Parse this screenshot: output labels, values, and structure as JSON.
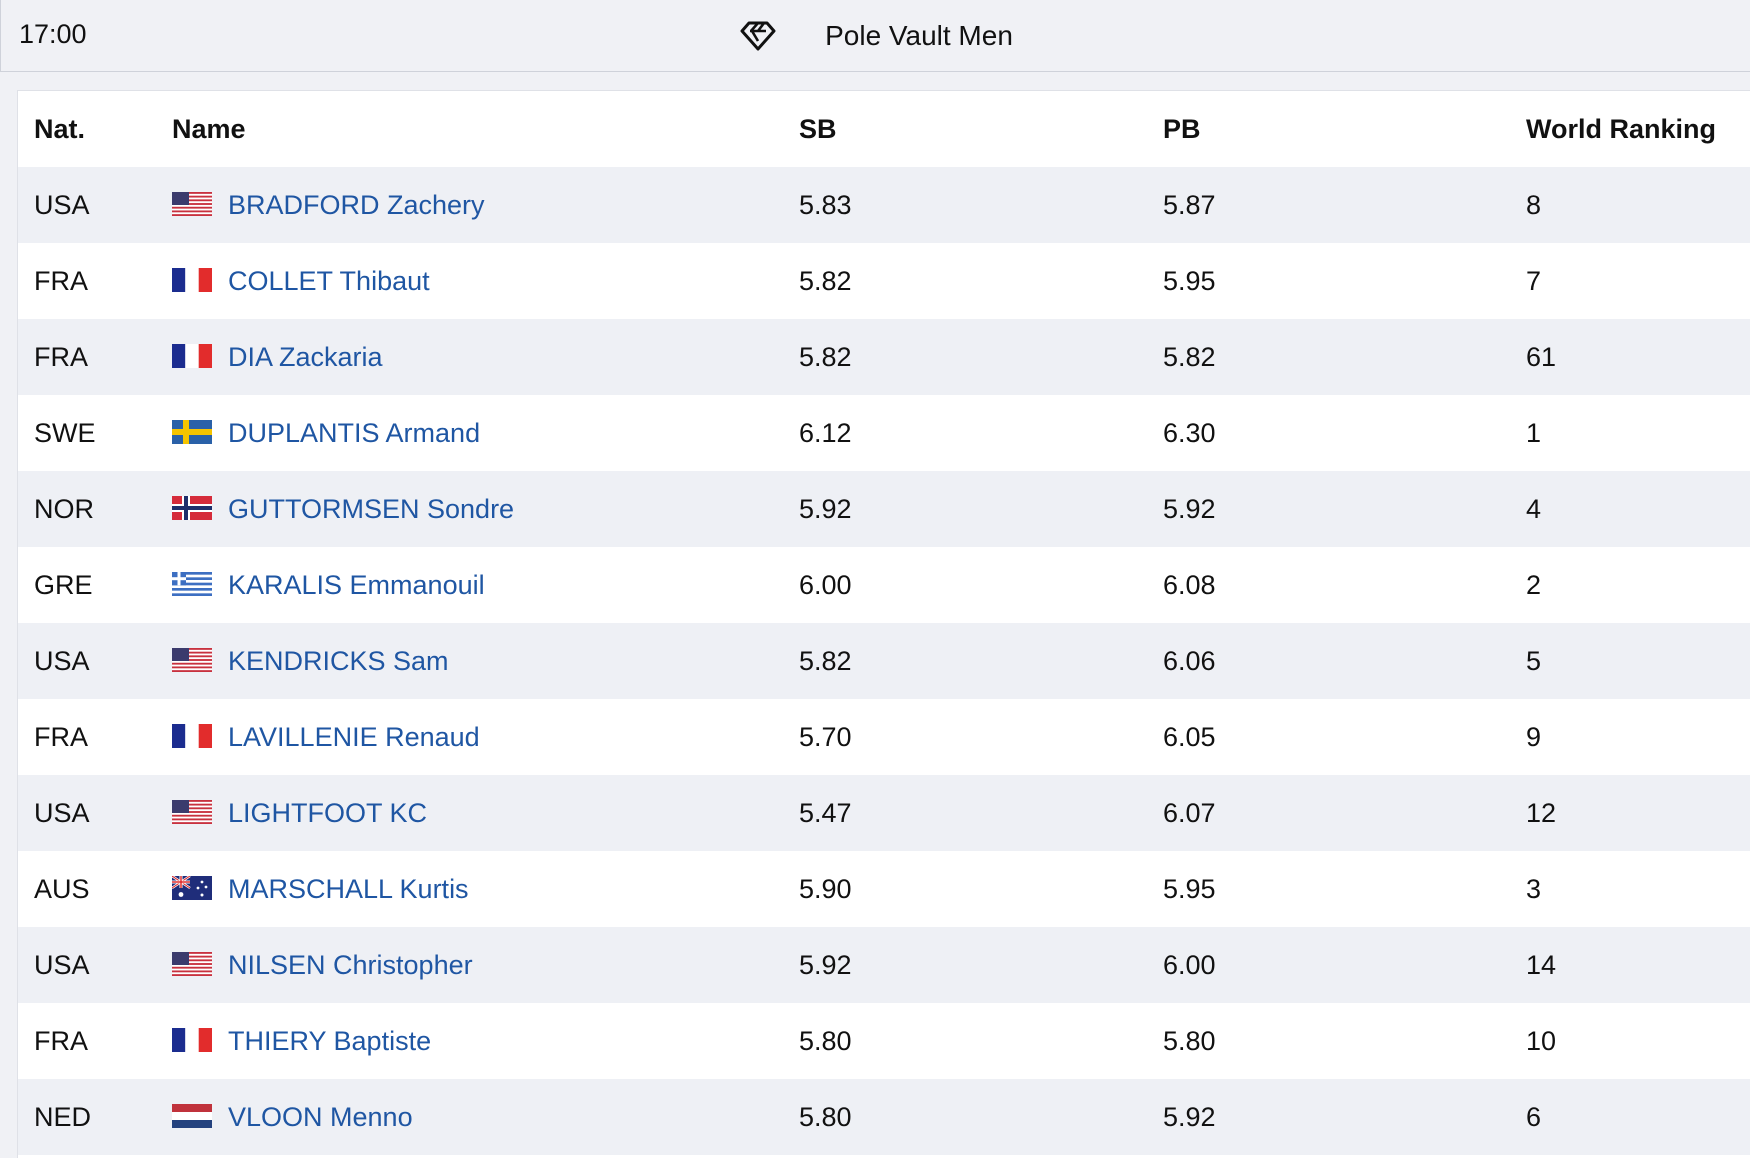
{
  "header": {
    "time": "17:00",
    "event_name": "Pole Vault Men",
    "event_icon": "diamond-league-icon"
  },
  "table": {
    "columns": {
      "nat": "Nat.",
      "name": "Name",
      "sb": "SB",
      "pb": "PB",
      "world_ranking": "World Ranking"
    },
    "rows": [
      {
        "nat": "USA",
        "flag": "usa",
        "name": "BRADFORD Zachery",
        "sb": "5.83",
        "pb": "5.87",
        "wr": "8"
      },
      {
        "nat": "FRA",
        "flag": "fra",
        "name": "COLLET Thibaut",
        "sb": "5.82",
        "pb": "5.95",
        "wr": "7"
      },
      {
        "nat": "FRA",
        "flag": "fra",
        "name": "DIA Zackaria",
        "sb": "5.82",
        "pb": "5.82",
        "wr": "61"
      },
      {
        "nat": "SWE",
        "flag": "swe",
        "name": "DUPLANTIS Armand",
        "sb": "6.12",
        "pb": "6.30",
        "wr": "1"
      },
      {
        "nat": "NOR",
        "flag": "nor",
        "name": "GUTTORMSEN Sondre",
        "sb": "5.92",
        "pb": "5.92",
        "wr": "4"
      },
      {
        "nat": "GRE",
        "flag": "gre",
        "name": "KARALIS Emmanouil",
        "sb": "6.00",
        "pb": "6.08",
        "wr": "2"
      },
      {
        "nat": "USA",
        "flag": "usa",
        "name": "KENDRICKS Sam",
        "sb": "5.82",
        "pb": "6.06",
        "wr": "5"
      },
      {
        "nat": "FRA",
        "flag": "fra",
        "name": "LAVILLENIE Renaud",
        "sb": "5.70",
        "pb": "6.05",
        "wr": "9"
      },
      {
        "nat": "USA",
        "flag": "usa",
        "name": "LIGHTFOOT KC",
        "sb": "5.47",
        "pb": "6.07",
        "wr": "12"
      },
      {
        "nat": "AUS",
        "flag": "aus",
        "name": "MARSCHALL Kurtis",
        "sb": "5.90",
        "pb": "5.95",
        "wr": "3"
      },
      {
        "nat": "USA",
        "flag": "usa",
        "name": "NILSEN Christopher",
        "sb": "5.92",
        "pb": "6.00",
        "wr": "14"
      },
      {
        "nat": "FRA",
        "flag": "fra",
        "name": "THIERY Baptiste",
        "sb": "5.80",
        "pb": "5.80",
        "wr": "10"
      },
      {
        "nat": "NED",
        "flag": "ned",
        "name": "VLOON Menno",
        "sb": "5.80",
        "pb": "5.92",
        "wr": "6"
      }
    ]
  },
  "colors": {
    "link": "#1f56a3",
    "row_alt": "#eef0f5",
    "header_bg": "#f0f1f5"
  }
}
